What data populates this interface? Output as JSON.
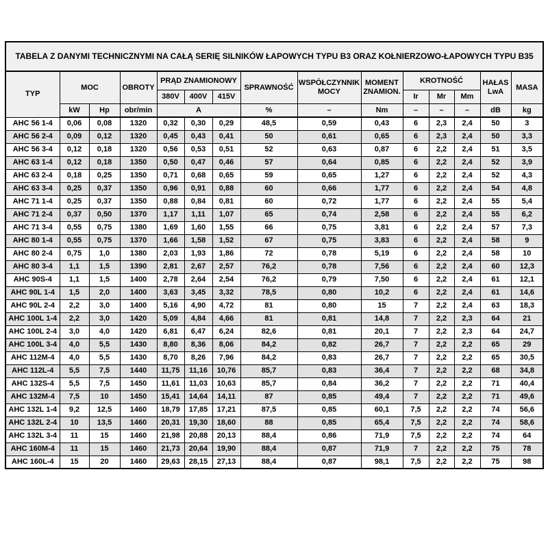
{
  "title": "TABELA Z DANYMI TECHNICZNYMI NA CAŁĄ SERIĘ SILNIKÓW ŁAPOWYCH TYPU B3 ORAZ KOŁNIERZOWO-ŁAPOWYCH TYPU B35",
  "colors": {
    "page_bg": "#ffffff",
    "header_bg": "#f0f0f0",
    "stripe_bg": "#e2e2e2",
    "border": "#000000",
    "text": "#000000"
  },
  "table": {
    "headers": {
      "typ": "TYP",
      "moc": "MOC",
      "kw": "kW",
      "hp": "Hp",
      "obroty": "OBROTY",
      "obr_min": "obr/min",
      "prad_znamionowy": "PRĄD ZNAMIONOWY",
      "v380": "380V",
      "v400": "400V",
      "v415": "415V",
      "amp": "A",
      "sprawnosc": "SPRAWNOŚĆ",
      "percent": "%",
      "wspolczynnik_mocy": "WSPÓŁCZYNNIK MOCY",
      "dash": "–",
      "moment_znamion": "MOMENT ZNAMION.",
      "nm": "Nm",
      "krotnosc": "KROTNOŚĆ",
      "ir": "Ir",
      "mr": "Mr",
      "mm": "Mm",
      "halas_lwa": "HAŁAS LwA",
      "db": "dB",
      "masa": "MASA",
      "kg": "kg"
    },
    "rows": [
      [
        "AHC 56 1-4",
        "0,06",
        "0,08",
        "1320",
        "0,32",
        "0,30",
        "0,29",
        "48,5",
        "0,59",
        "0,43",
        "6",
        "2,3",
        "2,4",
        "50",
        "3"
      ],
      [
        "AHC 56 2-4",
        "0,09",
        "0,12",
        "1320",
        "0,45",
        "0,43",
        "0,41",
        "50",
        "0,61",
        "0,65",
        "6",
        "2,3",
        "2,4",
        "50",
        "3,3"
      ],
      [
        "AHC 56 3-4",
        "0,12",
        "0,18",
        "1320",
        "0,56",
        "0,53",
        "0,51",
        "52",
        "0,63",
        "0,87",
        "6",
        "2,2",
        "2,4",
        "51",
        "3,5"
      ],
      [
        "AHC 63 1-4",
        "0,12",
        "0,18",
        "1350",
        "0,50",
        "0,47",
        "0,46",
        "57",
        "0,64",
        "0,85",
        "6",
        "2,2",
        "2,4",
        "52",
        "3,9"
      ],
      [
        "AHC 63 2-4",
        "0,18",
        "0,25",
        "1350",
        "0,71",
        "0,68",
        "0,65",
        "59",
        "0,65",
        "1,27",
        "6",
        "2,2",
        "2,4",
        "52",
        "4,3"
      ],
      [
        "AHC 63 3-4",
        "0,25",
        "0,37",
        "1350",
        "0,96",
        "0,91",
        "0,88",
        "60",
        "0,66",
        "1,77",
        "6",
        "2,2",
        "2,4",
        "54",
        "4,8"
      ],
      [
        "AHC 71 1-4",
        "0,25",
        "0,37",
        "1350",
        "0,88",
        "0,84",
        "0,81",
        "60",
        "0,72",
        "1,77",
        "6",
        "2,2",
        "2,4",
        "55",
        "5,4"
      ],
      [
        "AHC 71 2-4",
        "0,37",
        "0,50",
        "1370",
        "1,17",
        "1,11",
        "1,07",
        "65",
        "0,74",
        "2,58",
        "6",
        "2,2",
        "2,4",
        "55",
        "6,2"
      ],
      [
        "AHC 71 3-4",
        "0,55",
        "0,75",
        "1380",
        "1,69",
        "1,60",
        "1,55",
        "66",
        "0,75",
        "3,81",
        "6",
        "2,2",
        "2,4",
        "57",
        "7,3"
      ],
      [
        "AHC 80 1-4",
        "0,55",
        "0,75",
        "1370",
        "1,66",
        "1,58",
        "1,52",
        "67",
        "0,75",
        "3,83",
        "6",
        "2,2",
        "2,4",
        "58",
        "9"
      ],
      [
        "AHC 80 2-4",
        "0,75",
        "1,0",
        "1380",
        "2,03",
        "1,93",
        "1,86",
        "72",
        "0,78",
        "5,19",
        "6",
        "2,2",
        "2,4",
        "58",
        "10"
      ],
      [
        "AHC 80 3-4",
        "1,1",
        "1,5",
        "1390",
        "2,81",
        "2,67",
        "2,57",
        "76,2",
        "0,78",
        "7,56",
        "6",
        "2,2",
        "2,4",
        "60",
        "12,3"
      ],
      [
        "AHC 90S-4",
        "1,1",
        "1,5",
        "1400",
        "2,78",
        "2,64",
        "2,54",
        "76,2",
        "0,79",
        "7,50",
        "6",
        "2,2",
        "2,4",
        "61",
        "12,1"
      ],
      [
        "AHC 90L 1-4",
        "1,5",
        "2,0",
        "1400",
        "3,63",
        "3,45",
        "3,32",
        "78,5",
        "0,80",
        "10,2",
        "6",
        "2,2",
        "2,4",
        "61",
        "14,6"
      ],
      [
        "AHC 90L 2-4",
        "2,2",
        "3,0",
        "1400",
        "5,16",
        "4,90",
        "4,72",
        "81",
        "0,80",
        "15",
        "7",
        "2,2",
        "2,4",
        "63",
        "18,3"
      ],
      [
        "AHC 100L 1-4",
        "2,2",
        "3,0",
        "1420",
        "5,09",
        "4,84",
        "4,66",
        "81",
        "0,81",
        "14,8",
        "7",
        "2,2",
        "2,3",
        "64",
        "21"
      ],
      [
        "AHC 100L 2-4",
        "3,0",
        "4,0",
        "1420",
        "6,81",
        "6,47",
        "6,24",
        "82,6",
        "0,81",
        "20,1",
        "7",
        "2,2",
        "2,3",
        "64",
        "24,7"
      ],
      [
        "AHC 100L 3-4",
        "4,0",
        "5,5",
        "1430",
        "8,80",
        "8,36",
        "8,06",
        "84,2",
        "0,82",
        "26,7",
        "7",
        "2,2",
        "2,2",
        "65",
        "29"
      ],
      [
        "AHC 112M-4",
        "4,0",
        "5,5",
        "1430",
        "8,70",
        "8,26",
        "7,96",
        "84,2",
        "0,83",
        "26,7",
        "7",
        "2,2",
        "2,2",
        "65",
        "30,5"
      ],
      [
        "AHC 112L-4",
        "5,5",
        "7,5",
        "1440",
        "11,75",
        "11,16",
        "10,76",
        "85,7",
        "0,83",
        "36,4",
        "7",
        "2,2",
        "2,2",
        "68",
        "34,8"
      ],
      [
        "AHC 132S-4",
        "5,5",
        "7,5",
        "1450",
        "11,61",
        "11,03",
        "10,63",
        "85,7",
        "0,84",
        "36,2",
        "7",
        "2,2",
        "2,2",
        "71",
        "40,4"
      ],
      [
        "AHC 132M-4",
        "7,5",
        "10",
        "1450",
        "15,41",
        "14,64",
        "14,11",
        "87",
        "0,85",
        "49,4",
        "7",
        "2,2",
        "2,2",
        "71",
        "49,6"
      ],
      [
        "AHC 132L 1-4",
        "9,2",
        "12,5",
        "1460",
        "18,79",
        "17,85",
        "17,21",
        "87,5",
        "0,85",
        "60,1",
        "7,5",
        "2,2",
        "2,2",
        "74",
        "56,6"
      ],
      [
        "AHC 132L 2-4",
        "10",
        "13,5",
        "1460",
        "20,31",
        "19,30",
        "18,60",
        "88",
        "0,85",
        "65,4",
        "7,5",
        "2,2",
        "2,2",
        "74",
        "58,6"
      ],
      [
        "AHC 132L 3-4",
        "11",
        "15",
        "1460",
        "21,98",
        "20,88",
        "20,13",
        "88,4",
        "0,86",
        "71,9",
        "7,5",
        "2,2",
        "2,2",
        "74",
        "64"
      ],
      [
        "AHC 160M-4",
        "11",
        "15",
        "1460",
        "21,73",
        "20,64",
        "19,90",
        "88,4",
        "0,87",
        "71,9",
        "7",
        "2,2",
        "2,2",
        "75",
        "78"
      ],
      [
        "AHC 160L-4",
        "15",
        "20",
        "1460",
        "29,63",
        "28,15",
        "27,13",
        "88,4",
        "0,87",
        "98,1",
        "7,5",
        "2,2",
        "2,2",
        "75",
        "98"
      ]
    ]
  }
}
